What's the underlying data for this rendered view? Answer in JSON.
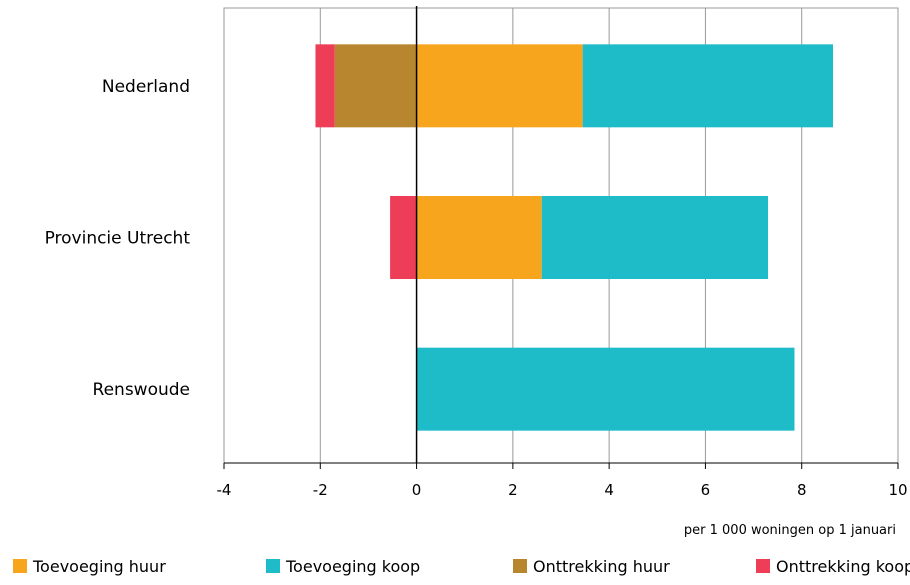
{
  "chart_data": {
    "type": "bar",
    "orientation": "horizontal",
    "stacked": true,
    "categories": [
      "Nederland",
      "Provincie Utrecht",
      "Renswoude"
    ],
    "series": [
      {
        "name": "Toevoeging huur",
        "color": "#f7a51c",
        "values": [
          3.45,
          2.6,
          0
        ]
      },
      {
        "name": "Toevoeging koop",
        "color": "#1ebcc8",
        "values": [
          5.2,
          4.7,
          7.85
        ]
      },
      {
        "name": "Onttrekking huur",
        "color": "#b8862f",
        "values": [
          -1.7,
          0,
          0
        ]
      },
      {
        "name": "Onttrekking koop",
        "color": "#ee3d56",
        "values": [
          -0.4,
          -0.55,
          0
        ]
      }
    ],
    "xlim": [
      -4,
      10
    ],
    "xticks": [
      -4,
      -2,
      0,
      2,
      4,
      6,
      8,
      10
    ],
    "xtick_labels": [
      "-4",
      "-2",
      "0",
      "2",
      "4",
      "6",
      "8",
      "10"
    ],
    "xlabel": "per 1 000 woningen op 1 januari",
    "grid": true,
    "legend_position": "bottom"
  }
}
